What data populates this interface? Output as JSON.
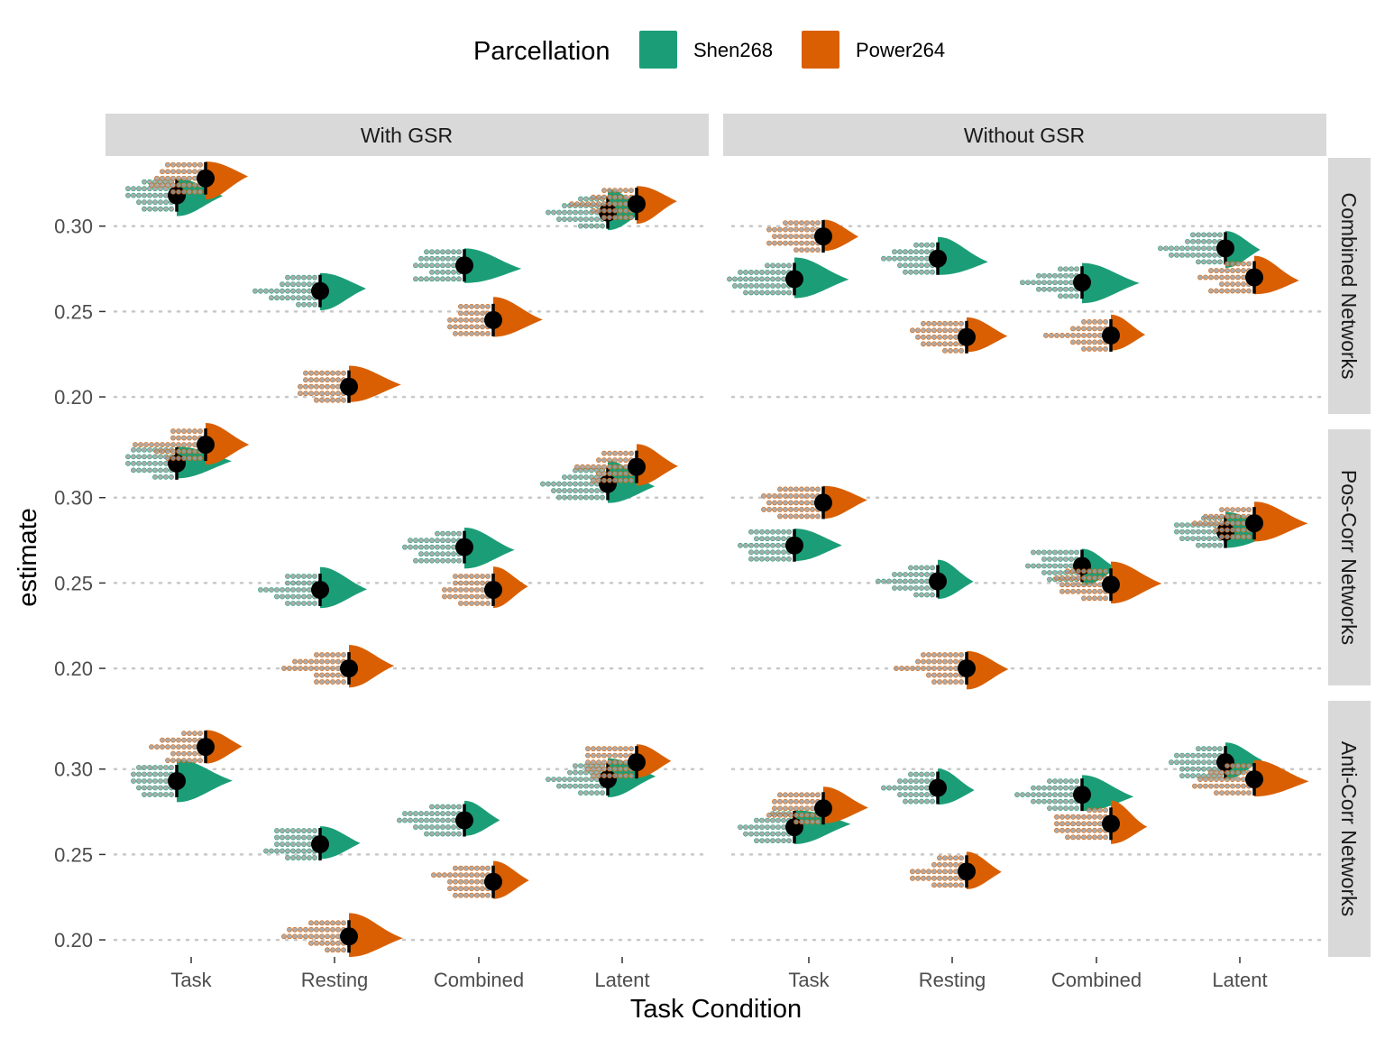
{
  "chart_data": {
    "type": "scatter",
    "subtype": "raincloud (half-violin + dotplot + point-interval)",
    "xlabel": "Task Condition",
    "ylabel": "estimate",
    "categories": [
      "Task",
      "Resting",
      "Combined",
      "Latent"
    ],
    "y_ticks": [
      "0.20",
      "0.25",
      "0.30"
    ],
    "y_tick_values": [
      0.2,
      0.25,
      0.3
    ],
    "ylim": [
      0.19,
      0.34
    ],
    "grid": "horizontal dotted at y ticks",
    "legend": {
      "title": "Parcellation",
      "position": "top",
      "entries": [
        {
          "name": "Shen268",
          "color": "#1B9E77"
        },
        {
          "name": "Power264",
          "color": "#D95F02"
        }
      ]
    },
    "facet_columns": [
      "With GSR",
      "Without GSR"
    ],
    "facet_rows": [
      "Combined Networks",
      "Pos-Corr Networks",
      "Anti-Corr Networks"
    ],
    "panels": [
      {
        "row": "Combined Networks",
        "col": "With GSR",
        "series": [
          {
            "name": "Shen268",
            "values": [
              0.318,
              0.262,
              0.277,
              0.308
            ]
          },
          {
            "name": "Power264",
            "values": [
              0.328,
              0.206,
              0.245,
              0.313
            ]
          }
        ]
      },
      {
        "row": "Combined Networks",
        "col": "Without GSR",
        "series": [
          {
            "name": "Shen268",
            "values": [
              0.269,
              0.281,
              0.267,
              0.287
            ]
          },
          {
            "name": "Power264",
            "values": [
              0.294,
              0.235,
              0.236,
              0.27
            ]
          }
        ]
      },
      {
        "row": "Pos-Corr Networks",
        "col": "With GSR",
        "series": [
          {
            "name": "Shen268",
            "values": [
              0.32,
              0.246,
              0.271,
              0.308
            ]
          },
          {
            "name": "Power264",
            "values": [
              0.331,
              0.2,
              0.246,
              0.318
            ]
          }
        ]
      },
      {
        "row": "Pos-Corr Networks",
        "col": "Without GSR",
        "series": [
          {
            "name": "Shen268",
            "values": [
              0.272,
              0.251,
              0.26,
              0.28
            ]
          },
          {
            "name": "Power264",
            "values": [
              0.297,
              0.2,
              0.249,
              0.285
            ]
          }
        ]
      },
      {
        "row": "Anti-Corr Networks",
        "col": "With GSR",
        "series": [
          {
            "name": "Shen268",
            "values": [
              0.293,
              0.256,
              0.27,
              0.294
            ]
          },
          {
            "name": "Power264",
            "values": [
              0.313,
              0.202,
              0.234,
              0.304
            ]
          }
        ]
      },
      {
        "row": "Anti-Corr Networks",
        "col": "Without GSR",
        "series": [
          {
            "name": "Shen268",
            "values": [
              0.266,
              0.289,
              0.285,
              0.304
            ]
          },
          {
            "name": "Power264",
            "values": [
              0.277,
              0.24,
              0.268,
              0.294
            ]
          }
        ]
      }
    ]
  }
}
